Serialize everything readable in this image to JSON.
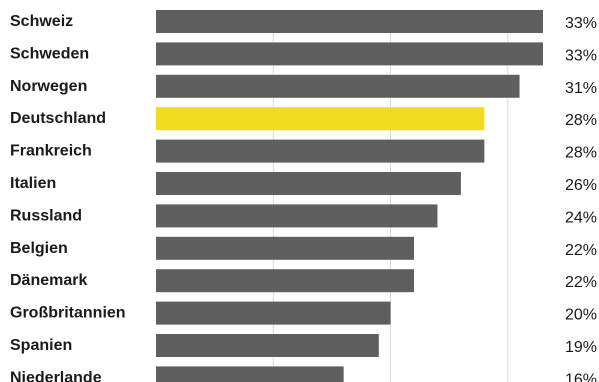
{
  "chart_data": {
    "type": "bar",
    "orientation": "horizontal",
    "categories": [
      "Schweiz",
      "Schweden",
      "Norwegen",
      "Deutschland",
      "Frankreich",
      "Italien",
      "Russland",
      "Belgien",
      "Dänemark",
      "Großbritannien",
      "Spanien",
      "Niederlande"
    ],
    "values": [
      33,
      33,
      31,
      28,
      28,
      26,
      24,
      22,
      22,
      20,
      19,
      16
    ],
    "value_labels": [
      "33%",
      "33%",
      "31%",
      "28%",
      "28%",
      "26%",
      "24%",
      "22%",
      "22%",
      "20%",
      "19%",
      "16%"
    ],
    "unit": "%",
    "xlim": [
      0,
      33
    ],
    "grid": true,
    "colors": {
      "bar": "#5f5f5f",
      "highlight": "#f0dc1f",
      "grid": "#d9d9d9",
      "text": "#1a1a1a"
    },
    "highlight_category": "Deutschland",
    "title": "",
    "xlabel": "",
    "ylabel": ""
  }
}
